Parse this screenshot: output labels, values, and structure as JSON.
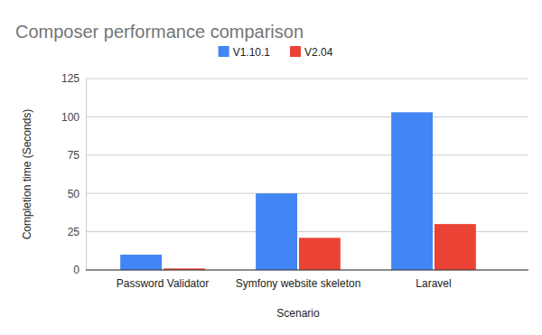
{
  "chart_data": {
    "type": "bar",
    "title": "Composer performance comparison",
    "x_label": "Scenario",
    "y_label": "Completion time (Seconds)",
    "categories": [
      "Password Validator",
      "Symfony website skeleton",
      "Laravel"
    ],
    "series": [
      {
        "name": "V1.10.1",
        "color": "#4285f4",
        "values": [
          10,
          50,
          103
        ]
      },
      {
        "name": "V2.04",
        "color": "#ea4335",
        "values": [
          1,
          21,
          30
        ]
      }
    ],
    "ylim": [
      0,
      125
    ],
    "yticks": [
      0,
      25,
      50,
      75,
      100,
      125
    ],
    "grid": true,
    "legend": "top"
  }
}
